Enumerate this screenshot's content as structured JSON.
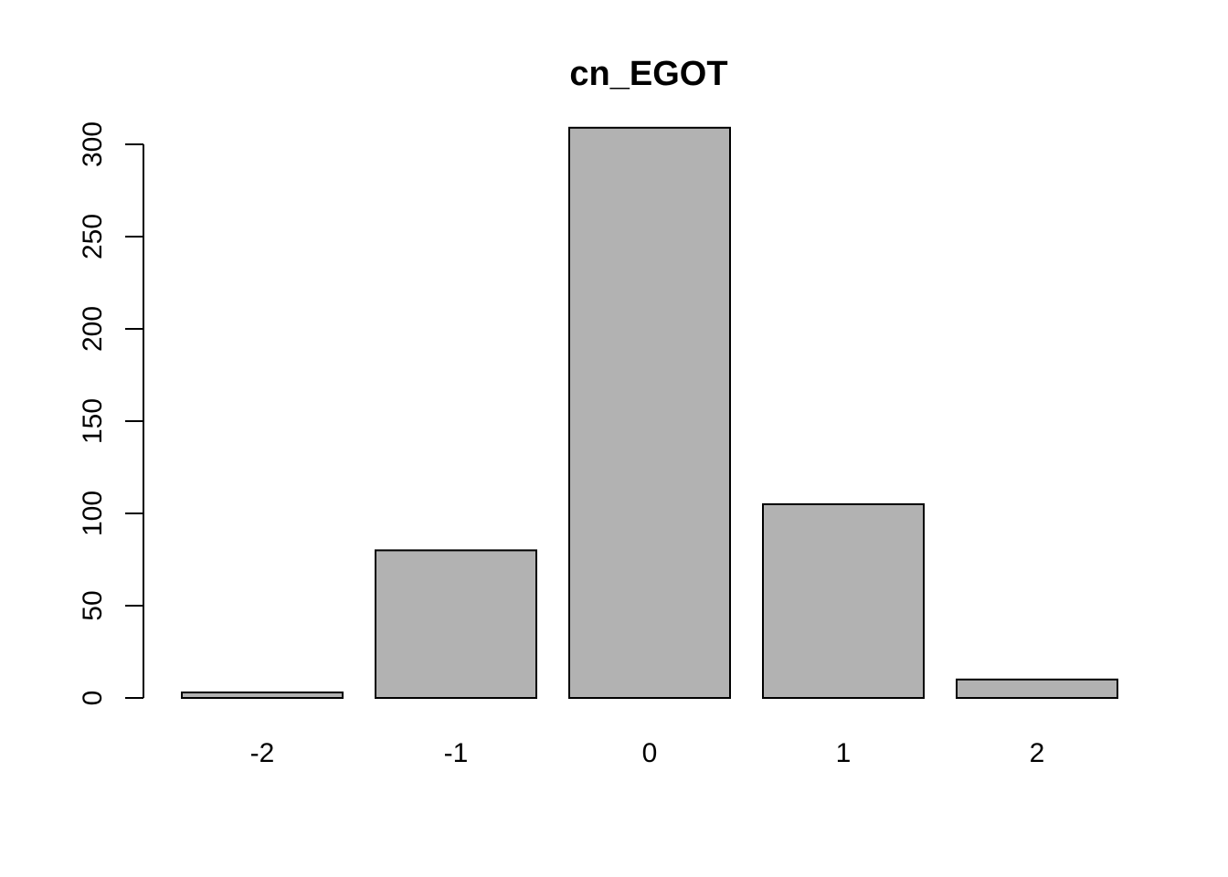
{
  "chart_data": {
    "type": "bar",
    "title": "cn_EGOT",
    "xlabel": "",
    "ylabel": "",
    "categories": [
      "-2",
      "-1",
      "0",
      "1",
      "2"
    ],
    "values": [
      3,
      80,
      309,
      105,
      10
    ],
    "ylim": [
      0,
      300
    ],
    "yticks": [
      "0",
      "50",
      "100",
      "150",
      "200",
      "250",
      "300"
    ],
    "grid": false,
    "legend": "none",
    "colors": {
      "bar_fill": "#b2b2b2",
      "bar_stroke": "#000000",
      "background": "#ffffff"
    }
  }
}
